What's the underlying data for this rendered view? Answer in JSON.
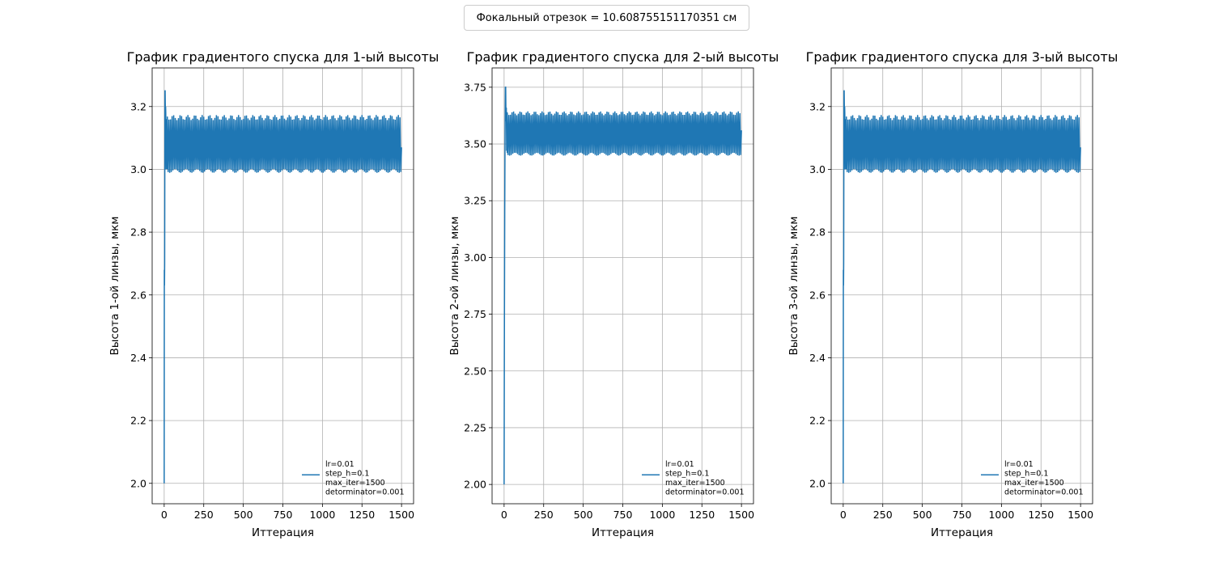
{
  "figure": {
    "suptitle": "Фокальный отрезок = 10.608755151170351 см",
    "line_color": "#1f77b4",
    "grid_color": "#b0b0b0"
  },
  "chart_data": [
    {
      "type": "line",
      "title": "График градиентого спуска для 1-ый высоты",
      "xlabel": "Иттерация",
      "ylabel": "Высота 1-ой линзы, мкм",
      "xlim": [
        -76,
        1576
      ],
      "ylim": [
        1.935,
        3.323
      ],
      "xticks": [
        0,
        250,
        500,
        750,
        1000,
        1250,
        1500
      ],
      "xtick_labels": [
        "0",
        "250",
        "500",
        "750",
        "1000",
        "1250",
        "1500"
      ],
      "yticks": [
        2.0,
        2.2,
        2.4,
        2.6,
        2.8,
        3.0,
        3.2
      ],
      "ytick_labels": [
        "2.0",
        "2.2",
        "2.4",
        "2.6",
        "2.8",
        "3.0",
        "3.2"
      ],
      "grid": true,
      "legend_position": "lower right",
      "legend_lines": [
        "lr=0.01",
        "step_h=0.1",
        "max_iter=1500",
        "detorminator=0.001"
      ],
      "series": [
        {
          "transient_x": [
            0,
            1,
            2,
            3,
            4,
            5,
            6,
            7,
            8,
            9,
            10,
            12,
            14,
            16,
            18,
            20
          ],
          "transient_y": [
            2.0,
            2.68,
            2.63,
            2.7,
            3.0,
            3.25,
            3.25,
            3.2,
            3.05,
            3.2,
            3.18,
            3.0,
            3.15,
            3.02,
            3.16,
            3.0
          ],
          "oscillation": {
            "x_start": 20,
            "x_end": 1500,
            "period": 10,
            "high": 3.165,
            "low": 2.995
          },
          "last_value": 3.07
        }
      ]
    },
    {
      "type": "line",
      "title": "График градиентого спуска для 2-ый высоты",
      "xlabel": "Иттерация",
      "ylabel": "Высота 2-ой линзы, мкм",
      "xlim": [
        -76,
        1576
      ],
      "ylim": [
        1.915,
        3.835
      ],
      "xticks": [
        0,
        250,
        500,
        750,
        1000,
        1250,
        1500
      ],
      "xtick_labels": [
        "0",
        "250",
        "500",
        "750",
        "1000",
        "1250",
        "1500"
      ],
      "yticks": [
        2.0,
        2.25,
        2.5,
        2.75,
        3.0,
        3.25,
        3.5,
        3.75
      ],
      "ytick_labels": [
        "2.00",
        "2.25",
        "2.50",
        "2.75",
        "3.00",
        "3.25",
        "3.50",
        "3.75"
      ],
      "grid": true,
      "legend_position": "lower right",
      "legend_lines": [
        "lr=0.01",
        "step_h=0.1",
        "max_iter=1500",
        "detorminator=0.001"
      ],
      "series": [
        {
          "transient_x": [
            0,
            2,
            4,
            6,
            8,
            10,
            12,
            14,
            16,
            18,
            20
          ],
          "transient_y": [
            2.0,
            2.7,
            3.2,
            3.55,
            3.75,
            3.75,
            3.6,
            3.66,
            3.47,
            3.64,
            3.46
          ],
          "oscillation": {
            "x_start": 20,
            "x_end": 1500,
            "period": 10,
            "high": 3.635,
            "low": 3.455
          },
          "last_value": 3.56
        }
      ]
    },
    {
      "type": "line",
      "title": "График градиентого спуска для 3-ый высоты",
      "xlabel": "Иттерация",
      "ylabel": "Высота 3-ой линзы, мкм",
      "xlim": [
        -76,
        1576
      ],
      "ylim": [
        1.935,
        3.323
      ],
      "xticks": [
        0,
        250,
        500,
        750,
        1000,
        1250,
        1500
      ],
      "xtick_labels": [
        "0",
        "250",
        "500",
        "750",
        "1000",
        "1250",
        "1500"
      ],
      "yticks": [
        2.0,
        2.2,
        2.4,
        2.6,
        2.8,
        3.0,
        3.2
      ],
      "ytick_labels": [
        "2.0",
        "2.2",
        "2.4",
        "2.6",
        "2.8",
        "3.0",
        "3.2"
      ],
      "grid": true,
      "legend_position": "lower right",
      "legend_lines": [
        "lr=0.01",
        "step_h=0.1",
        "max_iter=1500",
        "detorminator=0.001"
      ],
      "series": [
        {
          "transient_x": [
            0,
            1,
            2,
            3,
            4,
            5,
            6,
            7,
            8,
            9,
            10,
            12,
            14,
            16,
            18,
            20
          ],
          "transient_y": [
            2.0,
            2.68,
            2.63,
            2.7,
            3.0,
            3.25,
            3.25,
            3.2,
            3.05,
            3.2,
            3.18,
            3.0,
            3.15,
            3.02,
            3.16,
            3.0
          ],
          "oscillation": {
            "x_start": 20,
            "x_end": 1500,
            "period": 10,
            "high": 3.165,
            "low": 2.995
          },
          "last_value": 3.07
        }
      ]
    }
  ]
}
